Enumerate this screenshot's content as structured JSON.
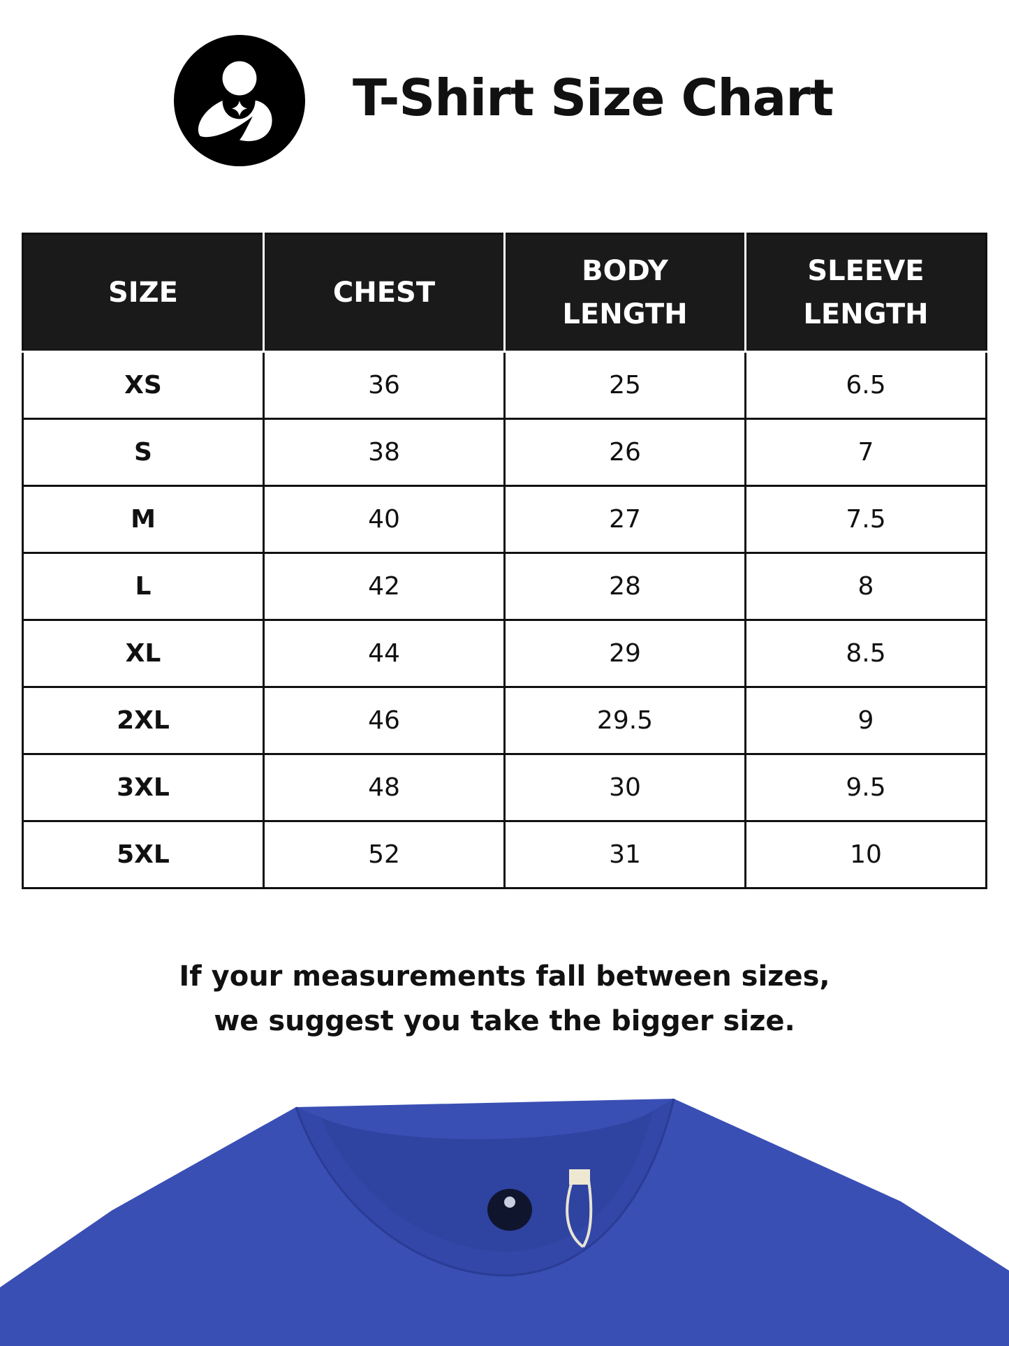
{
  "header": {
    "title": "T-Shirt Size Chart",
    "logo": "mother-and-child-logo"
  },
  "table": {
    "columns": [
      "SIZE",
      "CHEST",
      "BODY LENGTH",
      "SLEEVE LENGTH"
    ],
    "column_lines": [
      [
        "SIZE"
      ],
      [
        "CHEST"
      ],
      [
        "BODY",
        "LENGTH"
      ],
      [
        "SLEEVE",
        "LENGTH"
      ]
    ],
    "rows": [
      [
        "XS",
        "36",
        "25",
        "6.5"
      ],
      [
        "S",
        "38",
        "26",
        "7"
      ],
      [
        "M",
        "40",
        "27",
        "7.5"
      ],
      [
        "L",
        "42",
        "28",
        "8"
      ],
      [
        "XL",
        "44",
        "29",
        "8.5"
      ],
      [
        "2XL",
        "46",
        "29.5",
        "9"
      ],
      [
        "3XL",
        "48",
        "30",
        "9.5"
      ],
      [
        "5XL",
        "52",
        "31",
        "10"
      ]
    ]
  },
  "note": {
    "line1": "If your measurements fall between sizes,",
    "line2": "we suggest you take the bigger size."
  },
  "colors": {
    "header_bg": "#1a1a1a",
    "shirt": "#3a4fb4"
  }
}
